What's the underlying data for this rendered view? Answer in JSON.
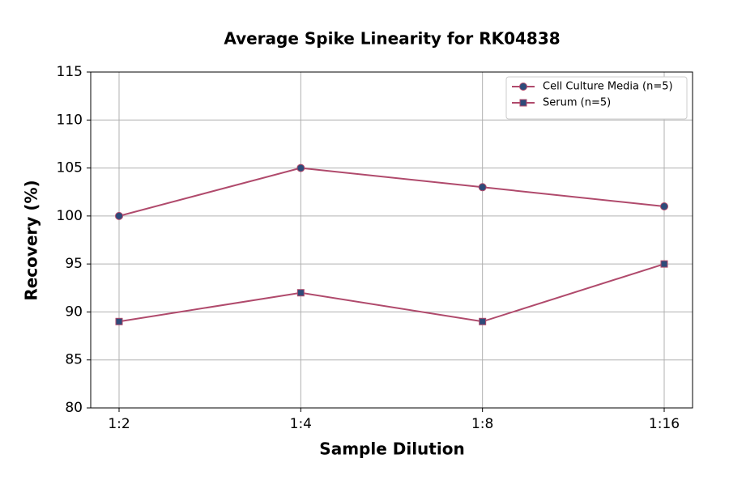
{
  "chart_data": {
    "type": "line",
    "title": "Average Spike Linearity for RK04838",
    "x_label": "Sample Dilution",
    "y_label": "Recovery (%)",
    "categories": [
      "1:2",
      "1:4",
      "1:8",
      "1:16"
    ],
    "series": [
      {
        "name": "Cell Culture Media (n=5)",
        "color": "#b04a6c",
        "marker": "circle",
        "marker_color": "#2e4b7a",
        "values": [
          100,
          105,
          103,
          101
        ]
      },
      {
        "name": "Serum (n=5)",
        "color": "#b04a6c",
        "marker": "square",
        "marker_color": "#2e4b7a",
        "values": [
          89,
          92,
          89,
          95
        ]
      }
    ],
    "ylim": [
      80,
      115
    ],
    "yticks": [
      80,
      85,
      90,
      95,
      100,
      105,
      110,
      115
    ],
    "grid": true,
    "legend": "upper right"
  }
}
